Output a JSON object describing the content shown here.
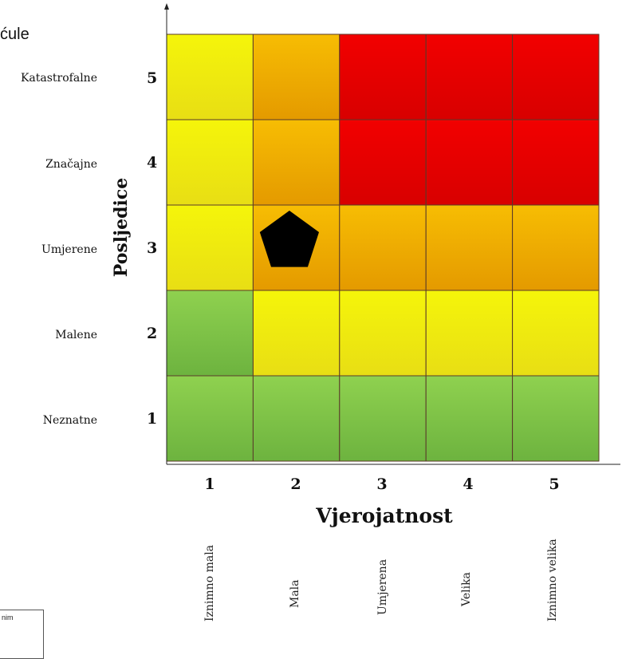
{
  "header": {
    "title_fragment": "ćule"
  },
  "chart_data": {
    "type": "heatmap",
    "ylabel": "Posljedice",
    "xlabel": "Vjerojatnost",
    "y_levels": [
      1,
      2,
      3,
      4,
      5
    ],
    "y_level_labels": [
      "Neznatne",
      "Malene",
      "Umjerene",
      "Značajne",
      "Katastrofalne"
    ],
    "x_levels": [
      1,
      2,
      3,
      4,
      5
    ],
    "x_level_labels": [
      "Iznimno mala",
      "Mala",
      "Umjerena",
      "Velika",
      "Iznimno velika"
    ],
    "cells": [
      [
        "green",
        "green",
        "green",
        "green",
        "green"
      ],
      [
        "green",
        "yellow",
        "yellow",
        "yellow",
        "yellow"
      ],
      [
        "yellow",
        "orange",
        "orange",
        "orange",
        "orange"
      ],
      [
        "yellow",
        "orange",
        "red",
        "red",
        "red"
      ],
      [
        "yellow",
        "orange",
        "red",
        "red",
        "red"
      ]
    ],
    "colors": {
      "green": [
        "#8fd14f",
        "#6db33f"
      ],
      "yellow": [
        "#f5f50a",
        "#e8de14"
      ],
      "orange": [
        "#f7bd03",
        "#e49a00"
      ],
      "red": [
        "#f20000",
        "#d80000"
      ]
    },
    "marker": {
      "shape": "pentagon",
      "x": 2,
      "y": 3,
      "color": "#000000"
    }
  },
  "legend_fragment": {
    "text": "nim"
  }
}
